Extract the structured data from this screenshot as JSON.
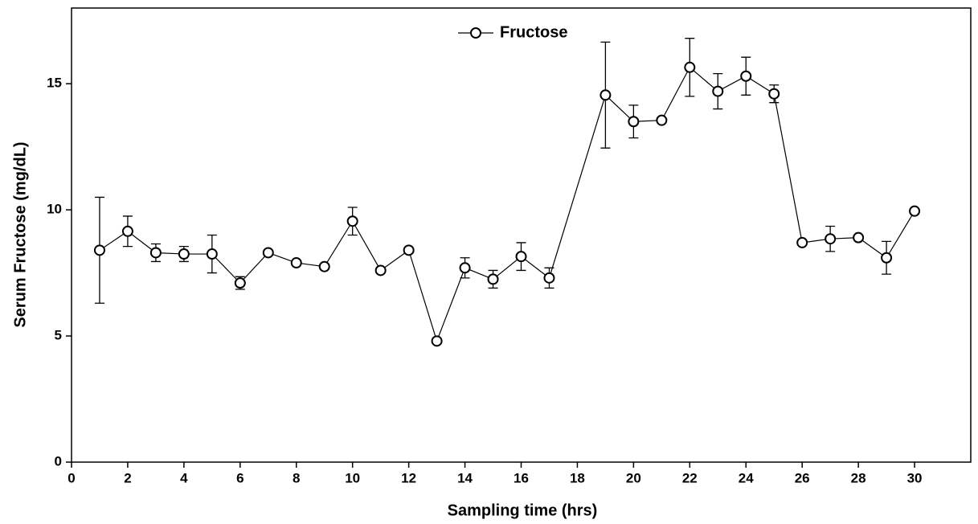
{
  "chart_data": {
    "type": "line",
    "x_label": "Sampling time (hrs)",
    "y_label": "Serum Fructose (mg/dL)",
    "x": [
      1,
      2,
      3,
      4,
      5,
      6,
      7,
      8,
      9,
      10,
      11,
      12,
      13,
      14,
      15,
      16,
      17,
      19,
      20,
      21,
      22,
      23,
      24,
      25,
      26,
      27,
      28,
      29,
      30
    ],
    "series": [
      {
        "name": "Fructose",
        "color": "#000000",
        "values": [
          8.4,
          9.15,
          8.3,
          8.25,
          8.25,
          7.1,
          8.3,
          7.9,
          7.75,
          9.55,
          7.6,
          8.4,
          4.8,
          7.7,
          7.25,
          8.15,
          7.3,
          14.55,
          13.5,
          13.55,
          15.65,
          14.7,
          15.3,
          14.6,
          8.7,
          8.85,
          8.9,
          8.1,
          9.95
        ],
        "errors": [
          2.1,
          0.6,
          0.35,
          0.3,
          0.75,
          0.25,
          0,
          0,
          0,
          0.55,
          0,
          0,
          0,
          0.4,
          0.35,
          0.55,
          0.4,
          2.1,
          0.65,
          0,
          1.15,
          0.7,
          0.75,
          0.35,
          0,
          0.5,
          0,
          0.65,
          0
        ]
      }
    ],
    "xlim": [
      0,
      32
    ],
    "ylim": [
      0,
      18
    ],
    "xticks": [
      0,
      2,
      4,
      6,
      8,
      10,
      12,
      14,
      16,
      18,
      20,
      22,
      24,
      26,
      28,
      30
    ],
    "yticks": [
      0,
      5,
      10,
      15
    ],
    "legend": "top"
  }
}
